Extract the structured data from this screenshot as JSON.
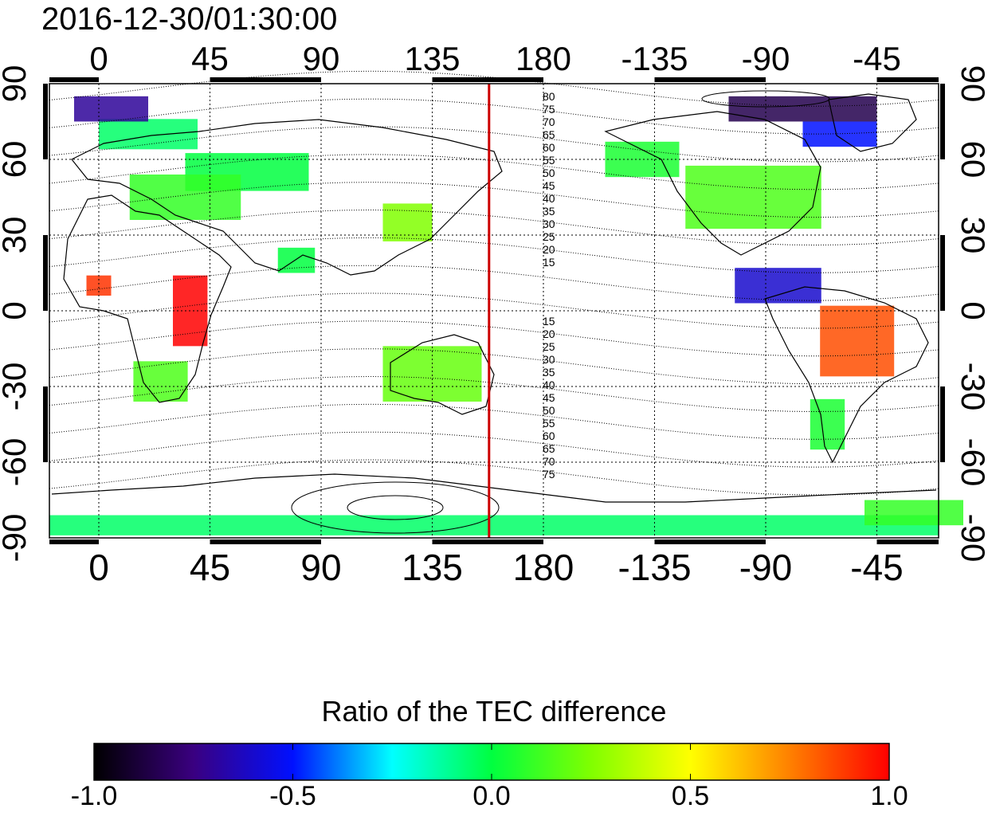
{
  "title": "2016-12-30/01:30:00",
  "colorbar": {
    "title": "Ratio of the TEC difference",
    "ticks": [
      "-1.0",
      "-0.5",
      "0.0",
      "0.5",
      "1.0"
    ],
    "range": [
      -1.0,
      1.0
    ],
    "colors": [
      "#000000",
      "#3a0080",
      "#0010ff",
      "#00ffff",
      "#00ff40",
      "#80ff00",
      "#ffff00",
      "#ff8000",
      "#ff0000"
    ]
  },
  "map": {
    "lon_ticks": [
      "0",
      "45",
      "90",
      "135",
      "180",
      "-135",
      "-90",
      "-45"
    ],
    "lon_values": [
      0,
      45,
      90,
      135,
      180,
      225,
      270,
      315
    ],
    "lat_ticks": [
      "90",
      "60",
      "30",
      "0",
      "-30",
      "-60",
      "-90"
    ],
    "lat_values": [
      90,
      60,
      30,
      0,
      -30,
      -60,
      -90
    ],
    "lon_range": [
      -20,
      340
    ],
    "lat_range": [
      -90,
      90
    ],
    "midnight_meridian_lon": 158,
    "contour_labels_north": [
      "80",
      "75",
      "70",
      "65",
      "60",
      "55",
      "50",
      "45",
      "40",
      "35",
      "30",
      "25",
      "20",
      "15"
    ],
    "contour_labels_south": [
      "15",
      "20",
      "25",
      "30",
      "35",
      "40",
      "45",
      "50",
      "55",
      "60",
      "65",
      "70",
      "75"
    ],
    "line_color": "#cc0000"
  },
  "patches": [
    {
      "lon": 20,
      "lat": 70,
      "w": 40,
      "h": 12,
      "v": -0.05
    },
    {
      "lon": 60,
      "lat": 55,
      "w": 50,
      "h": 15,
      "v": 0.0
    },
    {
      "lon": 5,
      "lat": 80,
      "w": 30,
      "h": 10,
      "v": -0.7
    },
    {
      "lon": 35,
      "lat": 45,
      "w": 45,
      "h": 18,
      "v": 0.1
    },
    {
      "lon": 37,
      "lat": 0,
      "w": 14,
      "h": 28,
      "v": 1.0
    },
    {
      "lon": 0,
      "lat": 10,
      "w": 10,
      "h": 8,
      "v": 0.9
    },
    {
      "lon": 25,
      "lat": -28,
      "w": 22,
      "h": 16,
      "v": 0.15
    },
    {
      "lon": 135,
      "lat": -25,
      "w": 40,
      "h": 22,
      "v": 0.2
    },
    {
      "lon": 125,
      "lat": 35,
      "w": 20,
      "h": 15,
      "v": 0.25
    },
    {
      "lon": 265,
      "lat": 45,
      "w": 55,
      "h": 25,
      "v": 0.15
    },
    {
      "lon": 285,
      "lat": 80,
      "w": 60,
      "h": 10,
      "v": -0.85
    },
    {
      "lon": 300,
      "lat": 70,
      "w": 30,
      "h": 10,
      "v": -0.5
    },
    {
      "lon": 275,
      "lat": 10,
      "w": 35,
      "h": 14,
      "v": -0.6
    },
    {
      "lon": 307,
      "lat": -12,
      "w": 30,
      "h": 28,
      "v": 0.85
    },
    {
      "lon": 295,
      "lat": -45,
      "w": 14,
      "h": 20,
      "v": 0.05
    },
    {
      "lon": 160,
      "lat": -85,
      "w": 360,
      "h": 8,
      "v": -0.05
    },
    {
      "lon": 220,
      "lat": 60,
      "w": 30,
      "h": 14,
      "v": 0.05
    },
    {
      "lon": 80,
      "lat": 20,
      "w": 15,
      "h": 10,
      "v": 0.0
    },
    {
      "lon": 330,
      "lat": -80,
      "w": 40,
      "h": 10,
      "v": 0.1
    }
  ]
}
